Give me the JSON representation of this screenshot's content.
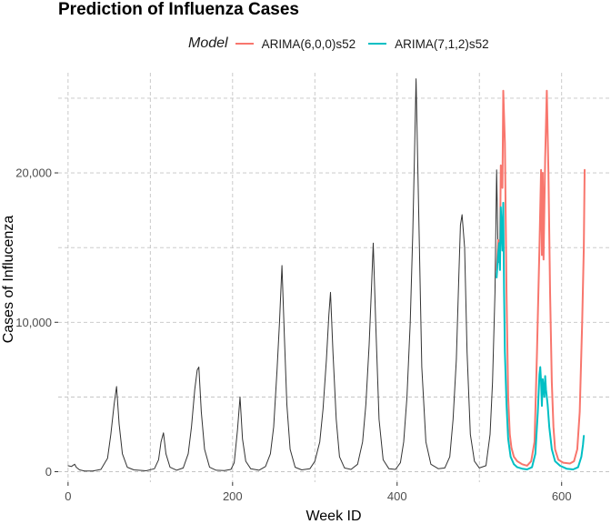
{
  "chart_data": {
    "type": "line",
    "title": "Prediction of Influenza Cases",
    "xlabel": "Week ID",
    "ylabel": "Cases of Influcenza",
    "xlim": [
      -12,
      660
    ],
    "ylim": [
      -700,
      26700
    ],
    "xticks": [
      0,
      200,
      400,
      600
    ],
    "yticks": [
      0,
      10000,
      20000
    ],
    "ytick_labels": [
      "0",
      "10,000",
      "20,000"
    ],
    "grid": true,
    "legend": {
      "title": "Model",
      "position": "top",
      "items": [
        {
          "label": "ARIMA(6,0,0)s52",
          "color": "#F8766D"
        },
        {
          "label": "ARIMA(7,1,2)s52",
          "color": "#00BFC4"
        }
      ]
    },
    "series": [
      {
        "role": "observed",
        "color": "#333333",
        "points": [
          [
            0,
            400
          ],
          [
            4,
            350
          ],
          [
            8,
            500
          ],
          [
            10,
            300
          ],
          [
            14,
            120
          ],
          [
            20,
            50
          ],
          [
            30,
            50
          ],
          [
            40,
            150
          ],
          [
            48,
            900
          ],
          [
            52,
            2500
          ],
          [
            56,
            4500
          ],
          [
            59,
            5700
          ],
          [
            62,
            3200
          ],
          [
            66,
            1200
          ],
          [
            72,
            300
          ],
          [
            80,
            120
          ],
          [
            95,
            60
          ],
          [
            105,
            200
          ],
          [
            110,
            800
          ],
          [
            113,
            2000
          ],
          [
            116,
            2600
          ],
          [
            119,
            1200
          ],
          [
            124,
            300
          ],
          [
            132,
            100
          ],
          [
            140,
            250
          ],
          [
            146,
            1200
          ],
          [
            150,
            3000
          ],
          [
            154,
            5500
          ],
          [
            157,
            6800
          ],
          [
            159,
            7000
          ],
          [
            162,
            4000
          ],
          [
            166,
            1500
          ],
          [
            172,
            300
          ],
          [
            180,
            100
          ],
          [
            190,
            80
          ],
          [
            198,
            150
          ],
          [
            202,
            600
          ],
          [
            206,
            2800
          ],
          [
            209,
            5000
          ],
          [
            212,
            2200
          ],
          [
            216,
            700
          ],
          [
            222,
            200
          ],
          [
            232,
            100
          ],
          [
            240,
            350
          ],
          [
            246,
            1200
          ],
          [
            250,
            3000
          ],
          [
            254,
            6800
          ],
          [
            257,
            10000
          ],
          [
            260,
            13800
          ],
          [
            263,
            9000
          ],
          [
            266,
            4500
          ],
          [
            270,
            1500
          ],
          [
            276,
            300
          ],
          [
            284,
            120
          ],
          [
            294,
            200
          ],
          [
            300,
            700
          ],
          [
            306,
            2000
          ],
          [
            310,
            4200
          ],
          [
            314,
            7500
          ],
          [
            317,
            10500
          ],
          [
            319,
            12000
          ],
          [
            322,
            8000
          ],
          [
            326,
            3500
          ],
          [
            330,
            1000
          ],
          [
            336,
            250
          ],
          [
            344,
            150
          ],
          [
            352,
            500
          ],
          [
            358,
            2000
          ],
          [
            362,
            4500
          ],
          [
            366,
            8500
          ],
          [
            369,
            12500
          ],
          [
            371,
            15300
          ],
          [
            374,
            10000
          ],
          [
            378,
            3500
          ],
          [
            383,
            800
          ],
          [
            390,
            200
          ],
          [
            398,
            150
          ],
          [
            404,
            600
          ],
          [
            408,
            2000
          ],
          [
            412,
            5000
          ],
          [
            416,
            10000
          ],
          [
            419,
            16000
          ],
          [
            421,
            21000
          ],
          [
            423,
            26300
          ],
          [
            426,
            18000
          ],
          [
            430,
            7000
          ],
          [
            435,
            2000
          ],
          [
            441,
            500
          ],
          [
            450,
            200
          ],
          [
            458,
            250
          ],
          [
            464,
            1000
          ],
          [
            468,
            3500
          ],
          [
            472,
            7500
          ],
          [
            475,
            13000
          ],
          [
            477,
            16500
          ],
          [
            479,
            17200
          ],
          [
            482,
            15000
          ],
          [
            485,
            8000
          ],
          [
            489,
            2500
          ],
          [
            494,
            700
          ],
          [
            500,
            250
          ],
          [
            508,
            400
          ],
          [
            513,
            2500
          ],
          [
            516,
            6000
          ],
          [
            519,
            12000
          ],
          [
            521,
            20200
          ],
          [
            523,
            14000
          ]
        ]
      },
      {
        "name": "ARIMA(6,0,0)s52",
        "color": "#F8766D",
        "points": [
          [
            521,
            13500
          ],
          [
            523,
            15500
          ],
          [
            525,
            15000
          ],
          [
            526,
            20500
          ],
          [
            528,
            19000
          ],
          [
            529,
            25500
          ],
          [
            531,
            22000
          ],
          [
            533,
            12000
          ],
          [
            535,
            5000
          ],
          [
            537,
            2500
          ],
          [
            539,
            1600
          ],
          [
            542,
            1000
          ],
          [
            546,
            700
          ],
          [
            552,
            500
          ],
          [
            558,
            400
          ],
          [
            563,
            700
          ],
          [
            567,
            2000
          ],
          [
            570,
            8000
          ],
          [
            573,
            15000
          ],
          [
            575,
            20200
          ],
          [
            576,
            14500
          ],
          [
            577,
            20000
          ],
          [
            578,
            14200
          ],
          [
            580,
            21000
          ],
          [
            582,
            25500
          ],
          [
            584,
            20000
          ],
          [
            586,
            12000
          ],
          [
            588,
            6000
          ],
          [
            590,
            3000
          ],
          [
            592,
            1500
          ],
          [
            596,
            800
          ],
          [
            602,
            600
          ],
          [
            610,
            550
          ],
          [
            615,
            700
          ],
          [
            619,
            1500
          ],
          [
            622,
            4000
          ],
          [
            625,
            10000
          ],
          [
            627,
            15000
          ],
          [
            628,
            20200
          ]
        ]
      },
      {
        "name": "ARIMA(7,1,2)s52",
        "color": "#00BFC4",
        "points": [
          [
            521,
            13000
          ],
          [
            523,
            14700
          ],
          [
            524,
            15300
          ],
          [
            525,
            13500
          ],
          [
            526,
            17700
          ],
          [
            528,
            14800
          ],
          [
            529,
            18000
          ],
          [
            530,
            12000
          ],
          [
            531,
            8000
          ],
          [
            533,
            4500
          ],
          [
            535,
            2200
          ],
          [
            538,
            1000
          ],
          [
            542,
            500
          ],
          [
            546,
            300
          ],
          [
            552,
            200
          ],
          [
            558,
            150
          ],
          [
            564,
            300
          ],
          [
            568,
            1200
          ],
          [
            571,
            4000
          ],
          [
            573,
            6500
          ],
          [
            574,
            7000
          ],
          [
            575,
            6000
          ],
          [
            576,
            4400
          ],
          [
            577,
            6200
          ],
          [
            579,
            5000
          ],
          [
            580,
            6400
          ],
          [
            581,
            5500
          ],
          [
            583,
            4500
          ],
          [
            585,
            3000
          ],
          [
            588,
            1500
          ],
          [
            592,
            700
          ],
          [
            598,
            400
          ],
          [
            606,
            200
          ],
          [
            614,
            150
          ],
          [
            620,
            300
          ],
          [
            624,
            1000
          ],
          [
            626,
            1800
          ],
          [
            627,
            2400
          ]
        ]
      }
    ]
  }
}
